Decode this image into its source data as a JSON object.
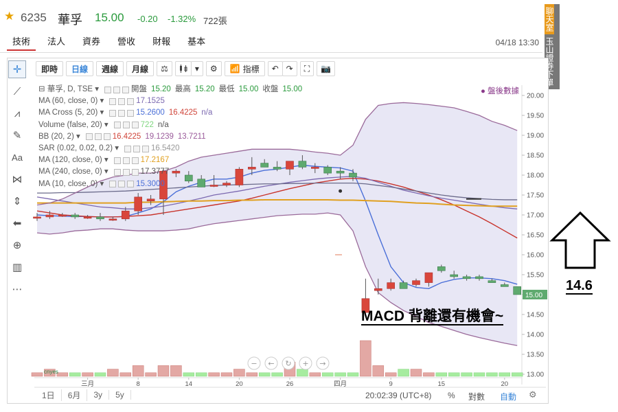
{
  "header": {
    "star": "★",
    "code": "6235",
    "name": "華孚",
    "price": "15.00",
    "change": "-0.20",
    "change_pct": "-1.32%",
    "volume": "722張"
  },
  "tabs": [
    "技術",
    "法人",
    "資券",
    "營收",
    "財報",
    "基本"
  ],
  "active_tab": "技術",
  "datetime": "04/18 13:30",
  "toolbar": {
    "buttons": [
      "即時",
      "日線",
      "週線",
      "月線"
    ],
    "active": "日線",
    "indicator_label": "指標"
  },
  "side_tabs": {
    "chat": "聊天室",
    "trade": "玉山證券下單"
  },
  "legend": [
    {
      "name": "華孚, D, TSE",
      "values": [
        {
          "text": "開盤",
          "color": "#555555"
        },
        {
          "text": "15.20",
          "color": "#2a9a3c"
        },
        {
          "text": "最高",
          "color": "#555555"
        },
        {
          "text": "15.20",
          "color": "#2a9a3c"
        },
        {
          "text": "最低",
          "color": "#555555"
        },
        {
          "text": "15.00",
          "color": "#2a9a3c"
        },
        {
          "text": "收盤",
          "color": "#555555"
        },
        {
          "text": "15.00",
          "color": "#2a9a3c"
        }
      ]
    },
    {
      "name": "MA (60, close, 0)",
      "values": [
        {
          "text": "17.1525",
          "color": "#7b68b0"
        }
      ]
    },
    {
      "name": "MA Cross (5, 20)",
      "values": [
        {
          "text": "15.2600",
          "color": "#4a6fd8"
        },
        {
          "text": "16.4225",
          "color": "#d0453a"
        },
        {
          "text": "n/a",
          "color": "#7b68b0"
        }
      ]
    },
    {
      "name": "Volume (false, 20)",
      "values": [
        {
          "text": "722",
          "color": "#7fd67f"
        },
        {
          "text": "n/a",
          "color": "#555555"
        }
      ]
    },
    {
      "name": "BB (20, 2)",
      "values": [
        {
          "text": "16.4225",
          "color": "#d0453a"
        },
        {
          "text": "19.1239",
          "color": "#9a5a9a"
        },
        {
          "text": "13.7211",
          "color": "#9a5a9a"
        }
      ]
    },
    {
      "name": "SAR (0.02, 0.02, 0.2)",
      "values": [
        {
          "text": "16.5420",
          "color": "#999999"
        }
      ]
    },
    {
      "name": "MA (120, close, 0)",
      "values": [
        {
          "text": "17.2167",
          "color": "#e0a020"
        }
      ]
    },
    {
      "name": "MA (240, close, 0)",
      "values": [
        {
          "text": "17.3777",
          "color": "#555555"
        }
      ]
    },
    {
      "name": "MA (10, close, 0)",
      "values": [
        {
          "text": "15.3000",
          "color": "#4a6fd8"
        }
      ]
    }
  ],
  "after_hours": "● 盤後數據",
  "annotation": "MACD 背離還有機會~",
  "arrow_label": "14.6",
  "price_tag": "15.00",
  "bottom": {
    "ranges": [
      "1日",
      "6月",
      "3y",
      "5y"
    ],
    "time": "20:02:39 (UTC+8)",
    "pct": "%",
    "log": "對數",
    "auto": "自動"
  },
  "colors": {
    "up": "#d9463b",
    "down": "#5faa6f",
    "band": "#9a6a9a",
    "ma5": "#4a6fd8",
    "ma20": "#c8332b",
    "ma60": "#7b68b0",
    "ma120": "#e0a020"
  },
  "chart_data": {
    "type": "candlestick",
    "symbol": "6235 華孚",
    "interval": "D",
    "x_tick_labels": [
      "三月",
      "8",
      "14",
      "20",
      "26",
      "四月",
      "9",
      "15",
      "20"
    ],
    "ylim": [
      13.0,
      20.0
    ],
    "y_ticks": [
      "13.00",
      "13.50",
      "14.00",
      "14.50",
      "15.00",
      "15.50",
      "16.00",
      "16.50",
      "17.00",
      "17.50",
      "18.00",
      "18.50",
      "19.00",
      "19.50",
      "20.00"
    ],
    "candles": [
      {
        "o": 16.95,
        "h": 17.05,
        "l": 16.85,
        "c": 16.95
      },
      {
        "o": 16.95,
        "h": 17.1,
        "l": 16.9,
        "c": 17.0
      },
      {
        "o": 17.0,
        "h": 17.05,
        "l": 16.95,
        "c": 17.0
      },
      {
        "o": 17.0,
        "h": 17.05,
        "l": 16.9,
        "c": 16.95
      },
      {
        "o": 16.95,
        "h": 17.0,
        "l": 16.9,
        "c": 16.95
      },
      {
        "o": 16.95,
        "h": 17.05,
        "l": 16.85,
        "c": 16.9
      },
      {
        "o": 16.9,
        "h": 16.95,
        "l": 16.85,
        "c": 16.9
      },
      {
        "o": 16.9,
        "h": 17.2,
        "l": 16.85,
        "c": 17.1
      },
      {
        "o": 17.1,
        "h": 17.55,
        "l": 17.0,
        "c": 17.45
      },
      {
        "o": 17.35,
        "h": 17.5,
        "l": 17.25,
        "c": 17.4
      },
      {
        "o": 17.4,
        "h": 18.15,
        "l": 17.0,
        "c": 18.1
      },
      {
        "o": 18.05,
        "h": 18.15,
        "l": 17.95,
        "c": 18.1
      },
      {
        "o": 18.0,
        "h": 18.1,
        "l": 17.8,
        "c": 17.85
      },
      {
        "o": 17.9,
        "h": 18.0,
        "l": 17.7,
        "c": 17.7
      },
      {
        "o": 17.75,
        "h": 18.0,
        "l": 17.7,
        "c": 17.75
      },
      {
        "o": 17.75,
        "h": 17.85,
        "l": 17.7,
        "c": 17.8
      },
      {
        "o": 17.75,
        "h": 18.2,
        "l": 17.7,
        "c": 18.15
      },
      {
        "o": 18.15,
        "h": 18.45,
        "l": 18.0,
        "c": 18.2
      },
      {
        "o": 18.3,
        "h": 18.4,
        "l": 18.2,
        "c": 18.2
      },
      {
        "o": 18.2,
        "h": 18.35,
        "l": 18.1,
        "c": 18.15
      },
      {
        "o": 18.15,
        "h": 18.35,
        "l": 18.0,
        "c": 18.35
      },
      {
        "o": 18.35,
        "h": 18.5,
        "l": 18.15,
        "c": 18.2
      },
      {
        "o": 18.2,
        "h": 18.3,
        "l": 18.05,
        "c": 18.2
      },
      {
        "o": 18.2,
        "h": 18.25,
        "l": 18.0,
        "c": 18.05
      },
      {
        "o": 18.1,
        "h": 18.2,
        "l": 17.9,
        "c": 18.05
      },
      {
        "o": 18.05,
        "h": 18.15,
        "l": 17.85,
        "c": 17.95
      },
      {
        "o": 14.55,
        "h": 15.4,
        "l": 14.5,
        "c": 14.9
      },
      {
        "o": 15.1,
        "h": 15.4,
        "l": 15.0,
        "c": 15.15
      },
      {
        "o": 15.15,
        "h": 15.4,
        "l": 15.1,
        "c": 15.3
      },
      {
        "o": 15.3,
        "h": 15.35,
        "l": 15.15,
        "c": 15.15
      },
      {
        "o": 15.25,
        "h": 15.4,
        "l": 15.2,
        "c": 15.35
      },
      {
        "o": 15.3,
        "h": 15.55,
        "l": 15.2,
        "c": 15.55
      },
      {
        "o": 15.7,
        "h": 15.75,
        "l": 15.55,
        "c": 15.6
      },
      {
        "o": 15.5,
        "h": 15.6,
        "l": 15.4,
        "c": 15.45
      },
      {
        "o": 15.45,
        "h": 15.5,
        "l": 15.35,
        "c": 15.4
      },
      {
        "o": 15.45,
        "h": 15.5,
        "l": 15.35,
        "c": 15.4
      },
      {
        "o": 15.35,
        "h": 15.4,
        "l": 15.3,
        "c": 15.3
      },
      {
        "o": 15.25,
        "h": 15.3,
        "l": 15.2,
        "c": 15.2
      },
      {
        "o": 15.2,
        "h": 15.2,
        "l": 15.0,
        "c": 15.0
      }
    ],
    "volume": [
      1,
      2,
      1,
      1,
      1,
      1,
      2,
      1,
      3,
      1,
      3,
      3,
      1,
      1,
      1,
      1,
      2,
      1,
      1,
      1,
      4,
      2,
      1,
      1,
      1,
      1,
      10,
      3,
      1,
      2,
      2,
      1,
      1,
      1,
      1,
      1,
      1,
      1,
      1
    ],
    "series": [
      {
        "name": "MA5",
        "values": [
          17.0,
          16.98,
          16.97,
          16.96,
          16.96,
          16.95,
          16.95,
          16.96,
          17.05,
          17.15,
          17.33,
          17.58,
          17.72,
          17.82,
          17.9,
          17.9,
          17.95,
          18.05,
          18.12,
          18.15,
          18.2,
          18.25,
          18.22,
          18.2,
          18.18,
          18.1,
          17.35,
          16.5,
          15.7,
          15.3,
          15.18,
          15.15,
          15.3,
          15.38,
          15.42,
          15.42,
          15.4,
          15.35,
          15.26
        ]
      },
      {
        "name": "MA20",
        "values": [
          17.1,
          17.05,
          17.0,
          16.98,
          16.96,
          16.95,
          16.95,
          16.96,
          16.98,
          17.0,
          17.05,
          17.1,
          17.15,
          17.2,
          17.25,
          17.3,
          17.35,
          17.42,
          17.5,
          17.58,
          17.66,
          17.73,
          17.8,
          17.85,
          17.9,
          17.92,
          17.9,
          17.85,
          17.78,
          17.7,
          17.6,
          17.5,
          17.38,
          17.25,
          17.1,
          16.95,
          16.78,
          16.6,
          16.42
        ]
      },
      {
        "name": "MA60",
        "values": [
          17.45,
          17.4,
          17.35,
          17.3,
          17.25,
          17.2,
          17.18,
          17.15,
          17.15,
          17.18,
          17.22,
          17.28,
          17.35,
          17.42,
          17.5,
          17.55,
          17.6,
          17.66,
          17.72,
          17.77,
          17.82,
          17.86,
          17.9,
          17.93,
          17.95,
          17.97,
          17.92,
          17.82,
          17.72,
          17.62,
          17.55,
          17.48,
          17.42,
          17.37,
          17.32,
          17.27,
          17.22,
          17.18,
          17.15
        ]
      },
      {
        "name": "MA120",
        "values": [
          17.3,
          17.3,
          17.3,
          17.3,
          17.3,
          17.3,
          17.3,
          17.3,
          17.32,
          17.32,
          17.33,
          17.34,
          17.35,
          17.35,
          17.36,
          17.36,
          17.37,
          17.37,
          17.38,
          17.38,
          17.38,
          17.38,
          17.38,
          17.38,
          17.37,
          17.37,
          17.36,
          17.35,
          17.34,
          17.32,
          17.3,
          17.29,
          17.27,
          17.25,
          17.24,
          17.23,
          17.22,
          17.22,
          17.22
        ]
      },
      {
        "name": "MA240",
        "values": [
          17.55,
          17.55,
          17.56,
          17.56,
          17.57,
          17.58,
          17.59,
          17.6,
          17.62,
          17.64,
          17.66,
          17.68,
          17.7,
          17.72,
          17.74,
          17.75,
          17.76,
          17.77,
          17.78,
          17.78,
          17.79,
          17.79,
          17.8,
          17.8,
          17.8,
          17.8,
          17.78,
          17.74,
          17.7,
          17.65,
          17.6,
          17.55,
          17.5,
          17.46,
          17.43,
          17.41,
          17.39,
          17.38,
          17.38
        ]
      },
      {
        "name": "BB upper",
        "values": [
          17.25,
          17.3,
          17.4,
          17.55,
          17.7,
          17.85,
          17.95,
          18.0,
          18.05,
          18.05,
          18.1,
          18.2,
          18.35,
          18.45,
          18.5,
          18.55,
          18.6,
          18.65,
          18.65,
          18.65,
          18.65,
          18.62,
          18.58,
          18.55,
          18.5,
          18.75,
          19.4,
          19.75,
          19.8,
          19.82,
          19.8,
          19.77,
          19.73,
          19.69,
          19.6,
          19.5,
          19.35,
          19.25,
          19.12
        ]
      },
      {
        "name": "BB lower",
        "values": [
          16.55,
          16.52,
          16.55,
          16.6,
          16.62,
          16.65,
          16.65,
          16.62,
          16.6,
          16.6,
          16.6,
          16.62,
          16.65,
          16.72,
          16.78,
          16.82,
          16.86,
          16.9,
          16.94,
          16.98,
          17.0,
          17.02,
          17.02,
          17.05,
          17.0,
          16.6,
          15.7,
          15.05,
          14.8,
          14.6,
          14.45,
          14.3,
          14.2,
          14.1,
          14.0,
          13.92,
          13.85,
          13.78,
          13.72
        ]
      }
    ]
  }
}
